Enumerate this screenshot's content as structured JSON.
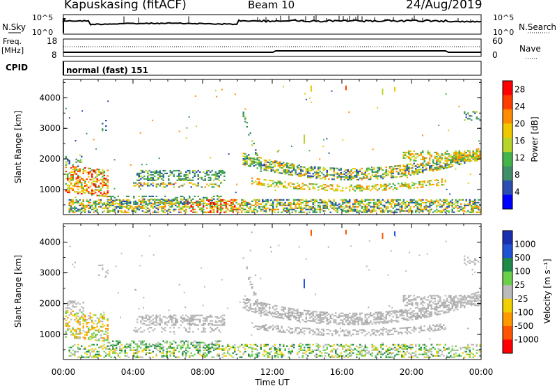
{
  "header": {
    "station": "Kapuskasing (fitACF)",
    "beam": "Beam 10",
    "date": "24/Aug/2019"
  },
  "top_panels": {
    "nsky_label": "N.Sky",
    "nsky_ticks": [
      "10^5",
      "10^0"
    ],
    "nsearch_label": "N.Search",
    "nsearch_ticks": [
      "10^5",
      "10^0"
    ],
    "freq_label": "Freq.",
    "freq_unit": "[MHz]",
    "freq_ticks": [
      "18",
      "8"
    ],
    "nave_label": "Nave",
    "nave_ticks": [
      "60",
      "0"
    ],
    "cpid_label": "CPID",
    "cpid_value": "normal (fast) 151"
  },
  "colors": {
    "power_scale": [
      "#0000ff",
      "#2b4fb0",
      "#3f8f6a",
      "#44b34a",
      "#b8d62a",
      "#f0c800",
      "#ff8c00",
      "#ff3c00",
      "#ff0000"
    ],
    "velocity_scale": [
      "#1a2fb0",
      "#1f52d4",
      "#1e8a4a",
      "#6ad04a",
      "#bbbbbb",
      "#f0d000",
      "#ff9900",
      "#ff5500",
      "#ff0000"
    ]
  },
  "chart_data": [
    {
      "type": "heatmap",
      "title": "Power",
      "xlabel": "",
      "ylabel": "Slant Range [km]",
      "x_ticks": [
        "00:00",
        "04:00",
        "08:00",
        "12:00",
        "16:00",
        "20:00",
        "00:00"
      ],
      "y_ticks": [
        "1000",
        "2000",
        "3000",
        "4000"
      ],
      "ylim": [
        180,
        4600
      ],
      "colorbar_label": "Power [dB]",
      "colorbar_ticks": [
        "4",
        "8",
        "12",
        "16",
        "20",
        "24",
        "28"
      ],
      "colorbar_range": [
        0,
        30
      ]
    },
    {
      "type": "heatmap",
      "title": "Velocity",
      "xlabel": "Time UT",
      "ylabel": "Slant Range [km]",
      "x_ticks": [
        "00:00",
        "04:00",
        "08:00",
        "12:00",
        "16:00",
        "20:00",
        "00:00"
      ],
      "y_ticks": [
        "1000",
        "2000",
        "3000",
        "4000"
      ],
      "ylim": [
        180,
        4600
      ],
      "colorbar_label": "Velocity [m s⁻¹]",
      "colorbar_ticks": [
        "1000",
        "500",
        "100",
        "25",
        "-25",
        "-100",
        "-500",
        "-1000"
      ]
    }
  ]
}
